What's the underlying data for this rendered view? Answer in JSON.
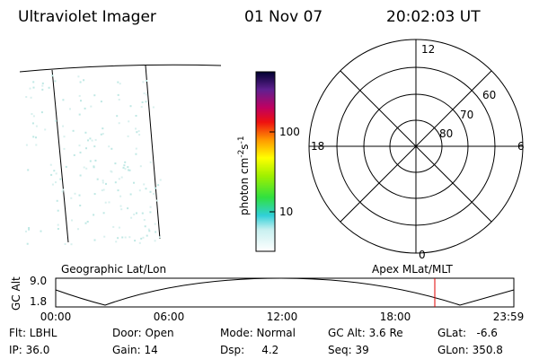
{
  "header": {
    "instrument": "Ultraviolet Imager",
    "date": "01 Nov 07",
    "time": "20:02:03 UT"
  },
  "colorbar": {
    "label": [
      "photon cm",
      "-2",
      "s",
      "-1"
    ],
    "ticks": [
      "100",
      "10"
    ]
  },
  "polar": {
    "lat_labels": [
      "60",
      "70",
      "80"
    ],
    "mlt_labels": [
      "12",
      "6",
      "0",
      "18"
    ]
  },
  "timeline": {
    "left_title": "Geographic Lat/Lon",
    "right_title": "Apex MLat/MLT",
    "y_label": "GC Alt",
    "yticks": [
      "9.0",
      "1.8"
    ],
    "xticks": [
      "00:00",
      "06:00",
      "12:00",
      "18:00",
      "23:59"
    ]
  },
  "info": {
    "rows": [
      [
        "Flt: LBHL",
        "Door: Open",
        "Mode: Normal",
        "GC Alt: 3.6 Re",
        "GLat:   -6.6"
      ],
      [
        "IP: 36.0",
        "Gain: 14",
        "Dsp:     4.2",
        "Seq: 39",
        "GLon: 350.8"
      ]
    ]
  }
}
